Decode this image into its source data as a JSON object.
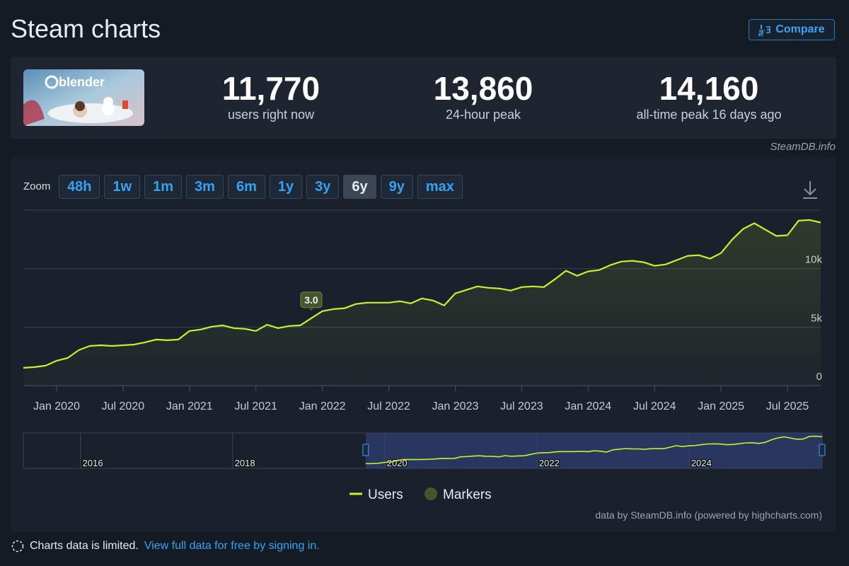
{
  "header": {
    "title": "Steam charts",
    "compare_button": "Compare"
  },
  "game": {
    "logo_text": "blender"
  },
  "stats": [
    {
      "value": "11,770",
      "label": "users right now"
    },
    {
      "value": "13,860",
      "label": "24-hour peak"
    },
    {
      "value": "14,160",
      "label": "all-time peak 16 days ago"
    }
  ],
  "source": "SteamDB.info",
  "zoom": {
    "label": "Zoom",
    "options": [
      "48h",
      "1w",
      "1m",
      "3m",
      "6m",
      "1y",
      "3y",
      "6y",
      "9y",
      "max"
    ],
    "active": "6y"
  },
  "chart_data": {
    "type": "line",
    "x": [
      "2019-10",
      "2019-11",
      "2019-12",
      "2020-01",
      "2020-02",
      "2020-03",
      "2020-04",
      "2020-05",
      "2020-06",
      "2020-07",
      "2020-08",
      "2020-09",
      "2020-10",
      "2020-11",
      "2020-12",
      "2021-01",
      "2021-02",
      "2021-03",
      "2021-04",
      "2021-05",
      "2021-06",
      "2021-07",
      "2021-08",
      "2021-09",
      "2021-10",
      "2021-11",
      "2021-12",
      "2022-01",
      "2022-02",
      "2022-03",
      "2022-04",
      "2022-05",
      "2022-06",
      "2022-07",
      "2022-08",
      "2022-09",
      "2022-10",
      "2022-11",
      "2022-12",
      "2023-01",
      "2023-02",
      "2023-03",
      "2023-04",
      "2023-05",
      "2023-06",
      "2023-07",
      "2023-08",
      "2023-09",
      "2023-10",
      "2023-11",
      "2023-12",
      "2024-01",
      "2024-02",
      "2024-03",
      "2024-04",
      "2024-05",
      "2024-06",
      "2024-07",
      "2024-08",
      "2024-09",
      "2024-10",
      "2024-11",
      "2024-12",
      "2025-01",
      "2025-02",
      "2025-03",
      "2025-04",
      "2025-05",
      "2025-06",
      "2025-07",
      "2025-08",
      "2025-09",
      "2025-10"
    ],
    "series": [
      {
        "name": "Users",
        "color": "#c4f22b",
        "values": [
          1520,
          1580,
          1700,
          2120,
          2360,
          3030,
          3390,
          3450,
          3390,
          3450,
          3510,
          3700,
          3940,
          3880,
          3940,
          4670,
          4790,
          5030,
          5150,
          4910,
          4850,
          4670,
          5210,
          4910,
          5090,
          5150,
          5760,
          6360,
          6540,
          6610,
          6970,
          7090,
          7090,
          7090,
          7210,
          7030,
          7450,
          7270,
          6850,
          7880,
          8180,
          8480,
          8360,
          8300,
          8120,
          8420,
          8480,
          8420,
          9090,
          9820,
          9390,
          9760,
          9880,
          10300,
          10600,
          10670,
          10550,
          10240,
          10360,
          10730,
          11090,
          11150,
          10850,
          11330,
          12480,
          13390,
          13880,
          13330,
          12790,
          12850,
          14100,
          14160,
          13940
        ]
      }
    ],
    "markers": {
      "name": "Markers",
      "color": "#45562e",
      "items": [
        {
          "x": "2021-12",
          "label": "3.0"
        }
      ]
    },
    "xlim": [
      "2019-10",
      "2025-10"
    ],
    "xticks": [
      {
        "value": "2020-01",
        "label": "Jan 2020"
      },
      {
        "value": "2020-07",
        "label": "Jul 2020"
      },
      {
        "value": "2021-01",
        "label": "Jan 2021"
      },
      {
        "value": "2021-07",
        "label": "Jul 2021"
      },
      {
        "value": "2022-01",
        "label": "Jan 2022"
      },
      {
        "value": "2022-07",
        "label": "Jul 2022"
      },
      {
        "value": "2023-01",
        "label": "Jan 2023"
      },
      {
        "value": "2023-07",
        "label": "Jul 2023"
      },
      {
        "value": "2024-01",
        "label": "Jan 2024"
      },
      {
        "value": "2024-07",
        "label": "Jul 2024"
      },
      {
        "value": "2025-01",
        "label": "Jan 2025"
      },
      {
        "value": "2025-07",
        "label": "Jul 2025"
      }
    ],
    "ylim": [
      0,
      15000
    ],
    "yticks": [
      0,
      {
        "value": 5000,
        "label": "5k"
      },
      {
        "value": 10000,
        "label": "10k"
      }
    ],
    "grid": true,
    "navigator": {
      "xlim": [
        "2015-04",
        "2025-10"
      ],
      "xticks": [
        "2016",
        "2018",
        "2020",
        "2022",
        "2024"
      ]
    },
    "credit": "data by SteamDB.info (powered by highcharts.com)"
  },
  "footer": {
    "notice": "Charts data is limited.",
    "link": "View full data for free by signing in."
  }
}
